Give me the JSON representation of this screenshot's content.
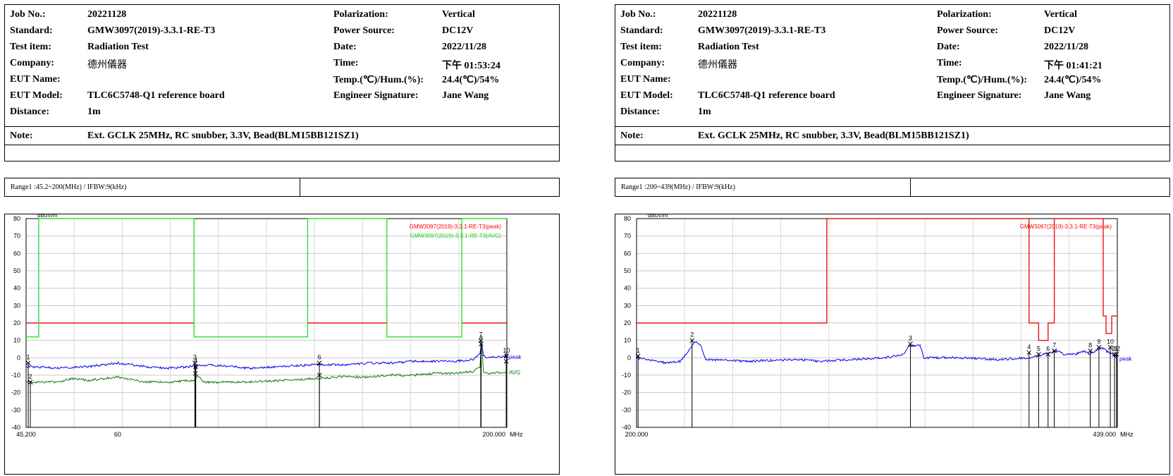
{
  "panels": [
    {
      "info": {
        "job_no_label": "Job No.:",
        "job_no": "20221128",
        "standard_label": "Standard:",
        "standard": "GMW3097(2019)-3.3.1-RE-T3",
        "test_item_label": "Test item:",
        "test_item": "Radiation Test",
        "company_label": "Company:",
        "company": "德州儀器",
        "eut_name_label": "EUT Name:",
        "eut_name": "",
        "eut_model_label": "EUT Model:",
        "eut_model": "TLC6C5748-Q1 reference board",
        "distance_label": "Distance:",
        "distance": "1m",
        "polarization_label": "Polarization:",
        "polarization": "Vertical",
        "power_label": "Power Source:",
        "power": "DC12V",
        "date_label": "Date:",
        "date": "2022/11/28",
        "time_label": "Time:",
        "time": "下午 01:53:24",
        "temp_label": "Temp.(℃)/Hum.(%):",
        "temp": "24.4(℃)/54%",
        "engineer_label": "Engineer Signature:",
        "engineer": "Jane Wang",
        "note_label": "Note:",
        "note": "Ext. GCLK 25MHz, RC snubber, 3.3V, Bead(BLM15BB121SZ1)"
      },
      "range_text": "Range1 :45.2~200(MHz) / IFBW:9(kHz)"
    },
    {
      "info": {
        "job_no_label": "Job No.:",
        "job_no": "20221128",
        "standard_label": "Standard:",
        "standard": "GMW3097(2019)-3.3.1-RE-T3",
        "test_item_label": "Test item:",
        "test_item": "Radiation Test",
        "company_label": "Company:",
        "company": "德州儀器",
        "eut_name_label": "EUT Name:",
        "eut_name": "",
        "eut_model_label": "EUT Model:",
        "eut_model": "TLC6C5748-Q1 reference board",
        "distance_label": "Distance:",
        "distance": "1m",
        "polarization_label": "Polarization:",
        "polarization": "Vertical",
        "power_label": "Power Source:",
        "power": "DC12V",
        "date_label": "Date:",
        "date": "2022/11/28",
        "time_label": "Time:",
        "time": "下午 01:41:21",
        "temp_label": "Temp.(℃)/Hum.(%):",
        "temp": "24.4(℃)/54%",
        "engineer_label": "Engineer Signature:",
        "engineer": "Jane Wang",
        "note_label": "Note:",
        "note": "Ext. GCLK 25MHz, RC snubber, 3.3V, Bead(BLM15BB121SZ1)"
      },
      "range_text": "Range1 :200~439(MHz) / IFBW:9(kHz)"
    }
  ],
  "chart_data": [
    {
      "type": "line",
      "ylabel": "dBuV/m",
      "ylim": [
        -40,
        80
      ],
      "yticks": [
        80,
        70,
        60,
        50,
        40,
        30,
        20,
        10,
        0,
        -10,
        -20,
        -30,
        -40
      ],
      "x_scale": "log",
      "xlim": [
        45.2,
        200
      ],
      "xtick_labels": [
        {
          "x": 45.2,
          "label": "45.200"
        },
        {
          "x": 60,
          "label": "60"
        },
        {
          "x": 200,
          "label": "200.000"
        }
      ],
      "x_unit": "MHz",
      "grid": true,
      "legend": [
        "GMW3097(2019)-3.3.1-RE-T3(peak)",
        "GMW3097(2019)-3.3.1-RE-T3(AVG)"
      ],
      "legend_colors": [
        "#ff0000",
        "#22cc22"
      ],
      "limits": [
        {
          "name": "GMW3097(2019)-3.3.1-RE-T3(peak)",
          "color": "#ee1111",
          "points": [
            [
              45.2,
              20
            ],
            [
              47,
              20
            ],
            [
              76,
              20
            ],
            [
              76,
              null
            ],
            [
              108,
              null
            ],
            [
              108,
              20
            ],
            [
              138,
              20
            ],
            [
              138,
              null
            ],
            [
              174,
              null
            ],
            [
              174,
              20
            ],
            [
              200,
              20
            ]
          ]
        },
        {
          "name": "GMW3097(2019)-3.3.1-RE-T3(AVG)",
          "color": "#33dd33",
          "points": [
            [
              45.2,
              12
            ],
            [
              47,
              12
            ],
            [
              47,
              80
            ],
            [
              76,
              80
            ],
            [
              76,
              12
            ],
            [
              108,
              12
            ],
            [
              108,
              80
            ],
            [
              138,
              80
            ],
            [
              138,
              12
            ],
            [
              174,
              12
            ],
            [
              174,
              80
            ],
            [
              200,
              80
            ]
          ]
        }
      ],
      "traces": [
        {
          "name": "peak",
          "color": "#0000ee",
          "label": "peak",
          "points": [
            [
              45.2,
              -5
            ],
            [
              50,
              -6
            ],
            [
              55,
              -5
            ],
            [
              60,
              -3
            ],
            [
              65,
              -5
            ],
            [
              70,
              -6
            ],
            [
              76,
              -5
            ],
            [
              80,
              -4
            ],
            [
              90,
              -6
            ],
            [
              100,
              -5
            ],
            [
              110,
              -4
            ],
            [
              120,
              -4
            ],
            [
              130,
              -3
            ],
            [
              140,
              -3
            ],
            [
              150,
              -2
            ],
            [
              160,
              -2
            ],
            [
              170,
              -2
            ],
            [
              180,
              -1
            ],
            [
              184,
              2
            ],
            [
              185,
              9
            ],
            [
              186,
              1
            ],
            [
              190,
              0
            ],
            [
              200,
              1
            ]
          ]
        },
        {
          "name": "AVG",
          "color": "#117711",
          "label": "AVG",
          "points": [
            [
              45.2,
              -14
            ],
            [
              50,
              -14
            ],
            [
              52,
              -12
            ],
            [
              55,
              -13
            ],
            [
              60,
              -11
            ],
            [
              65,
              -14
            ],
            [
              70,
              -14
            ],
            [
              76,
              -13
            ],
            [
              77,
              -10
            ],
            [
              78,
              -14
            ],
            [
              90,
              -14
            ],
            [
              100,
              -13
            ],
            [
              110,
              -12
            ],
            [
              120,
              -11
            ],
            [
              130,
              -11
            ],
            [
              140,
              -10
            ],
            [
              150,
              -10
            ],
            [
              160,
              -9
            ],
            [
              170,
              -9
            ],
            [
              180,
              -8
            ],
            [
              184,
              -5
            ],
            [
              185,
              8
            ],
            [
              186,
              -8
            ],
            [
              190,
              -9
            ],
            [
              200,
              -8
            ]
          ]
        }
      ],
      "markers": [
        {
          "n": "1",
          "x": 45.5,
          "y": -3
        },
        {
          "n": "2",
          "x": 45.8,
          "y": -14
        },
        {
          "n": "3",
          "x": 76.2,
          "y": -3
        },
        {
          "n": "4",
          "x": 76.4,
          "y": -5
        },
        {
          "n": "5",
          "x": 76.3,
          "y": -9
        },
        {
          "n": "6",
          "x": 112,
          "y": -3
        },
        {
          "n": "",
          "x": 112,
          "y": -10
        },
        {
          "n": "7",
          "x": 184.5,
          "y": 10
        },
        {
          "n": "8",
          "x": 184.7,
          "y": 8
        },
        {
          "n": "9",
          "x": 199.6,
          "y": -2
        },
        {
          "n": "10",
          "x": 199.8,
          "y": 1
        }
      ]
    },
    {
      "type": "line",
      "ylabel": "dBuV/m",
      "ylim": [
        -40,
        80
      ],
      "yticks": [
        80,
        70,
        60,
        50,
        40,
        30,
        20,
        10,
        0,
        -10,
        -20,
        -30,
        -40
      ],
      "x_scale": "log",
      "xlim": [
        200,
        439
      ],
      "xtick_labels": [
        {
          "x": 200,
          "label": "200.000"
        },
        {
          "x": 439,
          "label": "439.000"
        }
      ],
      "x_unit": "MHz",
      "grid": true,
      "legend": [
        "GMW3097(2019)-3.3.1-RE-T3(peak)"
      ],
      "legend_colors": [
        "#ff0000"
      ],
      "limits": [
        {
          "name": "GMW3097(2019)-3.3.1-RE-T3(peak)",
          "color": "#ee1111",
          "points": [
            [
              200,
              20
            ],
            [
              273,
              20
            ],
            [
              273,
              80
            ],
            [
              380,
              80
            ],
            [
              380,
              20
            ],
            [
              386,
              20
            ],
            [
              386,
              10
            ],
            [
              392,
              10
            ],
            [
              392,
              20
            ],
            [
              396,
              20
            ],
            [
              396,
              80
            ],
            [
              429,
              80
            ],
            [
              429,
              24
            ],
            [
              431,
              24
            ],
            [
              431,
              14
            ],
            [
              435,
              14
            ],
            [
              435,
              24
            ],
            [
              439,
              24
            ]
          ]
        }
      ],
      "traces": [
        {
          "name": "peak",
          "color": "#0000ee",
          "label": "peak",
          "points": [
            [
              200,
              0
            ],
            [
              210,
              -3
            ],
            [
              215,
              -2
            ],
            [
              218,
              5
            ],
            [
              220,
              9
            ],
            [
              222,
              8
            ],
            [
              224,
              -1
            ],
            [
              240,
              -2
            ],
            [
              260,
              -1
            ],
            [
              270,
              -2
            ],
            [
              300,
              0
            ],
            [
              310,
              2
            ],
            [
              312,
              7
            ],
            [
              318,
              7
            ],
            [
              320,
              0
            ],
            [
              340,
              0
            ],
            [
              360,
              -1
            ],
            [
              380,
              0
            ],
            [
              390,
              2
            ],
            [
              398,
              4
            ],
            [
              402,
              2
            ],
            [
              410,
              2
            ],
            [
              415,
              4
            ],
            [
              420,
              2
            ],
            [
              425,
              5
            ],
            [
              428,
              6
            ],
            [
              431,
              4
            ],
            [
              435,
              2
            ],
            [
              439,
              0
            ]
          ]
        }
      ],
      "markers": [
        {
          "n": "1",
          "x": 200.5,
          "y": 1
        },
        {
          "n": "2",
          "x": 219,
          "y": 10
        },
        {
          "n": "3",
          "x": 313,
          "y": 8
        },
        {
          "n": "4",
          "x": 380,
          "y": 3
        },
        {
          "n": "5",
          "x": 386,
          "y": 2
        },
        {
          "n": "6",
          "x": 392,
          "y": 2
        },
        {
          "n": "7",
          "x": 396,
          "y": 4
        },
        {
          "n": "8",
          "x": 420,
          "y": 4
        },
        {
          "n": "9",
          "x": 426,
          "y": 6
        },
        {
          "n": "10",
          "x": 434,
          "y": 6
        },
        {
          "n": "11",
          "x": 437,
          "y": 2
        },
        {
          "n": "12",
          "x": 438.5,
          "y": 2
        }
      ]
    }
  ]
}
